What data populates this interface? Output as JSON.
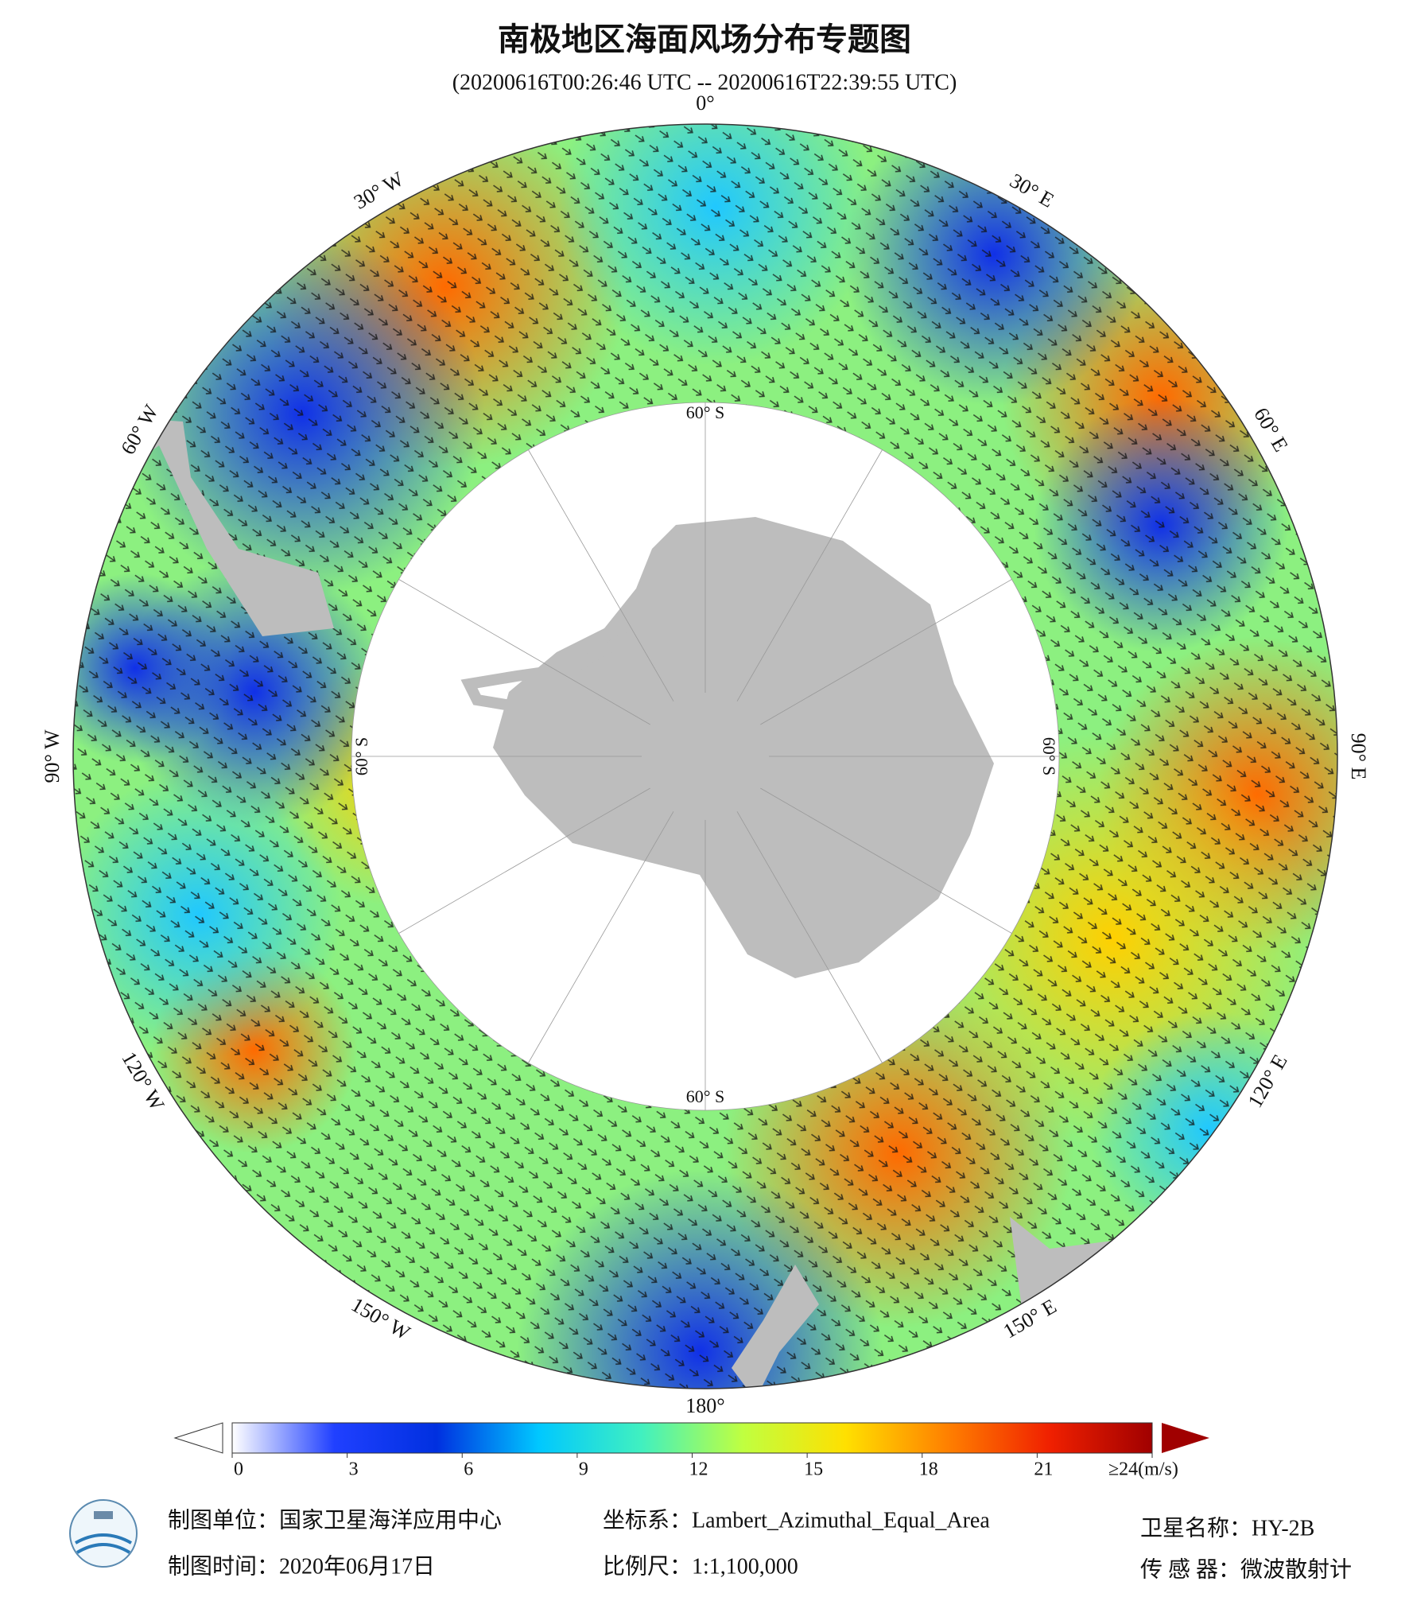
{
  "title": "南极地区海面风场分布专题图",
  "subtitle": "(20200616T00:26:46 UTC -- 20200616T22:39:55 UTC)",
  "map": {
    "lon_labels": [
      "0°",
      "30° E",
      "60° E",
      "90° E",
      "120° E",
      "150° E",
      "180°",
      "150° W",
      "120° W",
      "90° W",
      "60° W",
      "30° W"
    ],
    "lat_labels": [
      "60° S",
      "60° S",
      "60° S",
      "60° S"
    ]
  },
  "colorbar": {
    "lim": [
      0,
      24
    ],
    "ticks": [
      0,
      3,
      6,
      9,
      12,
      15,
      18,
      21,
      {
        "value": 24,
        "label": "≥24(m/s)"
      }
    ],
    "colors": [
      "#ffffff",
      "#2040ff",
      "#0030e0",
      "#00c8ff",
      "#40f0c0",
      "#c0ff40",
      "#ffe000",
      "#ff8000",
      "#f02000",
      "#a00000"
    ]
  },
  "footer": {
    "unit": "制图单位：国家卫星海洋应用中心",
    "time": "制图时间：2020年06月17日",
    "crs": "坐标系：Lambert_Azimuthal_Equal_Area",
    "scale": "比例尺：1:1,100,000",
    "satellite": "卫星名称：HY-2B",
    "sensor": "传 感 器：微波散射计"
  }
}
